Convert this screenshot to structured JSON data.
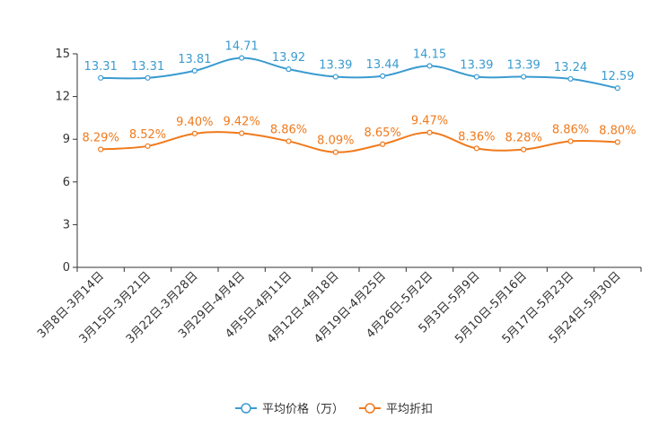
{
  "chart_data": {
    "type": "line",
    "categories": [
      "3月8日-3月14日",
      "3月15日-3月21日",
      "3月22日-3月28日",
      "3月29日-4月4日",
      "4月5日-4月11日",
      "4月12日-4月18日",
      "4月19日-4月25日",
      "4月26日-5月2日",
      "5月3日-5月9日",
      "5月10日-5月16日",
      "5月17日-5月23日",
      "5月24日-5月30日"
    ],
    "ylim": [
      0,
      15
    ],
    "yticks": [
      0,
      3,
      6,
      9,
      12,
      15
    ],
    "series": [
      {
        "name": "平均价格（万）",
        "color": "#3a9bd0",
        "values": [
          13.31,
          13.31,
          13.81,
          14.71,
          13.92,
          13.39,
          13.44,
          14.15,
          13.39,
          13.39,
          13.24,
          12.59
        ],
        "labels": [
          "13.31",
          "13.31",
          "13.81",
          "14.71",
          "13.92",
          "13.39",
          "13.44",
          "14.15",
          "13.39",
          "13.39",
          "13.24",
          "12.59"
        ]
      },
      {
        "name": "平均折扣",
        "color": "#f07a1c",
        "values": [
          8.29,
          8.52,
          9.4,
          9.42,
          8.86,
          8.09,
          8.65,
          9.47,
          8.36,
          8.28,
          8.86,
          8.8
        ],
        "labels": [
          "8.29%",
          "8.52%",
          "9.40%",
          "9.42%",
          "8.86%",
          "8.09%",
          "8.65%",
          "9.47%",
          "8.36%",
          "8.28%",
          "8.86%",
          "8.80%"
        ]
      }
    ],
    "legend": "bottom-center"
  }
}
